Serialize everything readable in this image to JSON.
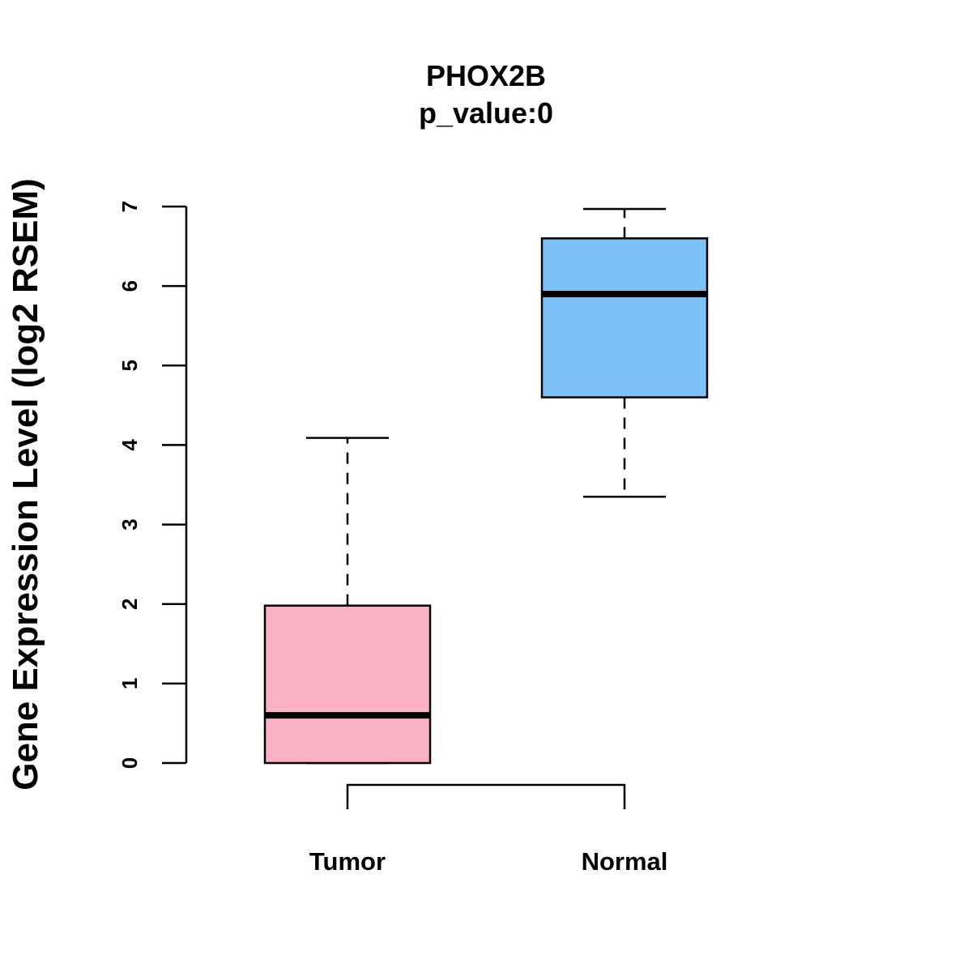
{
  "chart_data": {
    "type": "boxplot",
    "title": "PHOX2B",
    "subtitle": "p_value:0",
    "xlabel": "",
    "ylabel": "Gene Expression Level (log2 RSEM)",
    "ylim": [
      0,
      7
    ],
    "yticks": [
      0,
      1,
      2,
      3,
      4,
      5,
      6,
      7
    ],
    "ytick_labels": [
      "0",
      "1",
      "2",
      "3",
      "4",
      "5",
      "6",
      "7"
    ],
    "grid": false,
    "categories": [
      "Tumor",
      "Normal"
    ],
    "boxes": [
      {
        "name": "Tumor",
        "min": 0.0,
        "q1": 0.0,
        "median": 0.6,
        "q3": 1.98,
        "max": 4.09,
        "color": "#FBB1C4"
      },
      {
        "name": "Normal",
        "min": 3.35,
        "q1": 4.6,
        "median": 5.9,
        "q3": 6.6,
        "max": 6.97,
        "color": "#7AC1F8"
      }
    ],
    "comparison_bracket": {
      "from": "Tumor",
      "to": "Normal"
    }
  }
}
